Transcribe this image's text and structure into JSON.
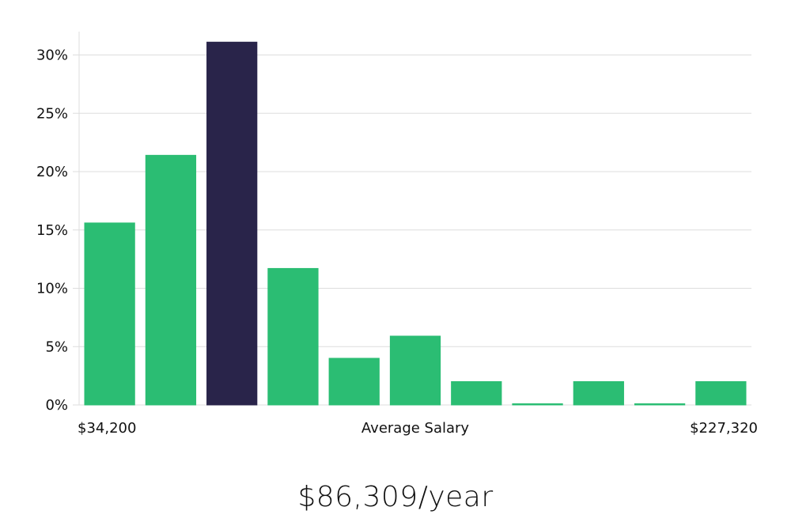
{
  "chart_data": {
    "type": "bar",
    "categories": [
      "1",
      "2",
      "3",
      "4",
      "5",
      "6",
      "7",
      "8",
      "9",
      "10",
      "11"
    ],
    "values": [
      15.6,
      21.4,
      31.1,
      11.7,
      4.0,
      5.9,
      2.0,
      0.1,
      2.0,
      0.1,
      2.0
    ],
    "highlight_index": 2,
    "ylim": [
      0,
      32
    ],
    "yticks": [
      0,
      5,
      10,
      15,
      20,
      25,
      30
    ],
    "ytick_labels": [
      "0%",
      "5%",
      "10%",
      "15%",
      "20%",
      "25%",
      "30%"
    ],
    "x_min_label": "$34,200",
    "x_center_label": "Average Salary",
    "x_max_label": "$227,320",
    "grid": true,
    "colors": {
      "bar": "#2bbd73",
      "highlight": "#29244a",
      "grid": "#dddddd",
      "axis": "#dddddd"
    }
  },
  "summary": {
    "salary_text": "$86,309/year"
  }
}
